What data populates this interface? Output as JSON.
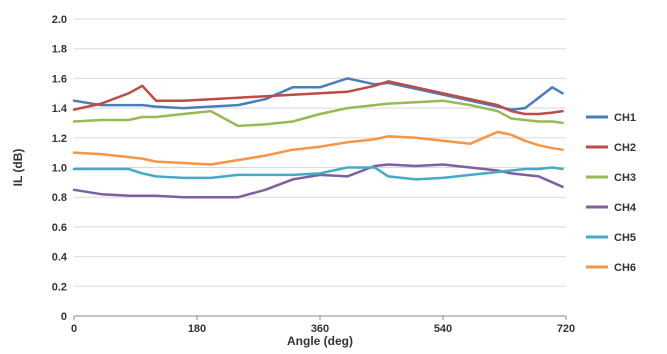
{
  "chart_data": {
    "type": "line",
    "xlabel": "Angle (deg)",
    "ylabel": "IL (dB)",
    "xlim": [
      0,
      720
    ],
    "ylim": [
      0,
      2.0
    ],
    "x_ticks": [
      "0",
      "180",
      "360",
      "540",
      "720"
    ],
    "y_ticks": [
      "0",
      "0.2",
      "0.4",
      "0.6",
      "0.8",
      "1.0",
      "1.2",
      "1.4",
      "1.6",
      "1.8",
      "2.0"
    ],
    "grid": "horizontal",
    "legend_position": "right",
    "x": [
      0,
      40,
      80,
      100,
      120,
      160,
      200,
      240,
      280,
      320,
      360,
      400,
      440,
      460,
      500,
      540,
      580,
      620,
      640,
      660,
      680,
      700,
      715
    ],
    "series": [
      {
        "name": "CH1",
        "color": "#4a7ebb",
        "values": [
          1.45,
          1.42,
          1.42,
          1.42,
          1.41,
          1.4,
          1.41,
          1.42,
          1.46,
          1.54,
          1.54,
          1.6,
          1.56,
          1.57,
          1.53,
          1.49,
          1.45,
          1.41,
          1.39,
          1.4,
          1.47,
          1.54,
          1.5
        ]
      },
      {
        "name": "CH2",
        "color": "#be4b48",
        "values": [
          1.39,
          1.43,
          1.5,
          1.55,
          1.45,
          1.45,
          1.46,
          1.47,
          1.48,
          1.49,
          1.5,
          1.51,
          1.55,
          1.58,
          1.54,
          1.5,
          1.46,
          1.42,
          1.38,
          1.36,
          1.36,
          1.37,
          1.38
        ]
      },
      {
        "name": "CH3",
        "color": "#98b954",
        "values": [
          1.31,
          1.32,
          1.32,
          1.34,
          1.34,
          1.36,
          1.38,
          1.28,
          1.29,
          1.31,
          1.36,
          1.4,
          1.42,
          1.43,
          1.44,
          1.45,
          1.42,
          1.38,
          1.33,
          1.32,
          1.31,
          1.31,
          1.3
        ]
      },
      {
        "name": "CH4",
        "color": "#7d60a0",
        "values": [
          0.85,
          0.82,
          0.81,
          0.81,
          0.81,
          0.8,
          0.8,
          0.8,
          0.85,
          0.92,
          0.95,
          0.94,
          1.01,
          1.02,
          1.01,
          1.02,
          1.0,
          0.98,
          0.96,
          0.95,
          0.94,
          0.9,
          0.87
        ]
      },
      {
        "name": "CH5",
        "color": "#46aac5",
        "values": [
          0.99,
          0.99,
          0.99,
          0.96,
          0.94,
          0.93,
          0.93,
          0.95,
          0.95,
          0.95,
          0.96,
          1.0,
          1.0,
          0.94,
          0.92,
          0.93,
          0.95,
          0.97,
          0.98,
          0.99,
          0.99,
          1.0,
          0.99
        ]
      },
      {
        "name": "CH6",
        "color": "#f59646",
        "values": [
          1.1,
          1.09,
          1.07,
          1.06,
          1.04,
          1.03,
          1.02,
          1.05,
          1.08,
          1.12,
          1.14,
          1.17,
          1.19,
          1.21,
          1.2,
          1.18,
          1.16,
          1.24,
          1.22,
          1.18,
          1.15,
          1.13,
          1.12
        ]
      }
    ]
  }
}
